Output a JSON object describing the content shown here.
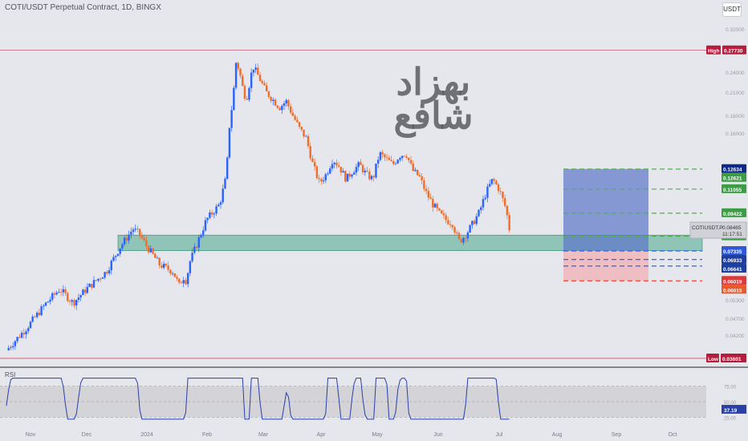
{
  "header": {
    "title": "COTI/USDT Perpetual Contract, 1D, BINGX",
    "currency_button": "USDT"
  },
  "watermark": {
    "line1": "بهزاد",
    "line2": "شافع"
  },
  "symbol_tag": {
    "name": "COTIUSDT.P",
    "price": "0.08465",
    "countdown": "11:17:51"
  },
  "rsi": {
    "label": "RSI",
    "value": "37.19",
    "levels": [
      "75.00",
      "50.00",
      "25.00"
    ]
  },
  "colors": {
    "up": "#2962ff",
    "down": "#ef6c2a",
    "target": "#4caf50",
    "stop": "#f44336",
    "entry": "#2962ff",
    "zone": "#48a88a",
    "high_line": "#b71c3c"
  },
  "chart_data": {
    "type": "candlestick",
    "title": "COTI/USDT Perpetual Contract, 1D, BINGX",
    "x_ticks": [
      "Nov",
      "Dec",
      "2024",
      "Feb",
      "Mar",
      "Apr",
      "May",
      "Jun",
      "Jul",
      "Aug",
      "Sep",
      "Oct"
    ],
    "y_scale": "log",
    "y_ticks": [
      "0.32000",
      "0.24000",
      "0.21000",
      "0.18000",
      "0.16000",
      "0.05300",
      "0.04700",
      "0.04200"
    ],
    "high": {
      "label": "High",
      "value": "0.27730"
    },
    "low": {
      "label": "Low",
      "value": "0.03601"
    },
    "price_labels": [
      {
        "value": "0.12634",
        "role": "range-top"
      },
      {
        "value": "0.12621",
        "role": "target-3"
      },
      {
        "value": "0.11055",
        "role": "target-2"
      },
      {
        "value": "0.09422",
        "role": "target-1"
      },
      {
        "value": "0.08088",
        "role": "zone-top"
      },
      {
        "value": "0.07335",
        "role": "entry"
      },
      {
        "value": "0.06933",
        "role": "level"
      },
      {
        "value": "0.06641",
        "role": "level"
      },
      {
        "value": "0.06019",
        "role": "stop"
      },
      {
        "value": "0.06015",
        "role": "stop-bottom"
      }
    ],
    "close_path": [
      [
        0.0,
        0.038
      ],
      [
        0.03,
        0.044
      ],
      [
        0.06,
        0.052
      ],
      [
        0.08,
        0.057
      ],
      [
        0.1,
        0.052
      ],
      [
        0.12,
        0.057
      ],
      [
        0.15,
        0.064
      ],
      [
        0.17,
        0.075
      ],
      [
        0.19,
        0.085
      ],
      [
        0.2,
        0.082
      ],
      [
        0.21,
        0.076
      ],
      [
        0.23,
        0.067
      ],
      [
        0.25,
        0.064
      ],
      [
        0.26,
        0.058
      ],
      [
        0.265,
        0.062
      ],
      [
        0.27,
        0.06
      ],
      [
        0.275,
        0.068
      ],
      [
        0.3,
        0.09
      ],
      [
        0.32,
        0.1
      ],
      [
        0.33,
        0.12
      ],
      [
        0.335,
        0.17
      ],
      [
        0.34,
        0.2
      ],
      [
        0.345,
        0.26
      ],
      [
        0.35,
        0.24
      ],
      [
        0.355,
        0.215
      ],
      [
        0.36,
        0.2
      ],
      [
        0.37,
        0.25
      ],
      [
        0.38,
        0.23
      ],
      [
        0.39,
        0.21
      ],
      [
        0.4,
        0.2
      ],
      [
        0.41,
        0.19
      ],
      [
        0.42,
        0.198
      ],
      [
        0.43,
        0.18
      ],
      [
        0.44,
        0.165
      ],
      [
        0.45,
        0.155
      ],
      [
        0.46,
        0.13
      ],
      [
        0.47,
        0.115
      ],
      [
        0.48,
        0.122
      ],
      [
        0.49,
        0.135
      ],
      [
        0.5,
        0.128
      ],
      [
        0.51,
        0.118
      ],
      [
        0.52,
        0.125
      ],
      [
        0.53,
        0.13
      ],
      [
        0.54,
        0.122
      ],
      [
        0.55,
        0.118
      ],
      [
        0.56,
        0.14
      ],
      [
        0.57,
        0.135
      ],
      [
        0.58,
        0.13
      ],
      [
        0.59,
        0.138
      ],
      [
        0.6,
        0.14
      ],
      [
        0.61,
        0.125
      ],
      [
        0.62,
        0.12
      ],
      [
        0.63,
        0.108
      ],
      [
        0.64,
        0.1
      ],
      [
        0.65,
        0.094
      ],
      [
        0.66,
        0.09
      ],
      [
        0.67,
        0.088
      ],
      [
        0.675,
        0.082
      ],
      [
        0.68,
        0.078
      ],
      [
        0.69,
        0.082
      ],
      [
        0.7,
        0.088
      ],
      [
        0.71,
        0.095
      ],
      [
        0.72,
        0.108
      ],
      [
        0.73,
        0.118
      ],
      [
        0.74,
        0.11
      ],
      [
        0.75,
        0.097
      ],
      [
        0.755,
        0.085
      ]
    ]
  }
}
